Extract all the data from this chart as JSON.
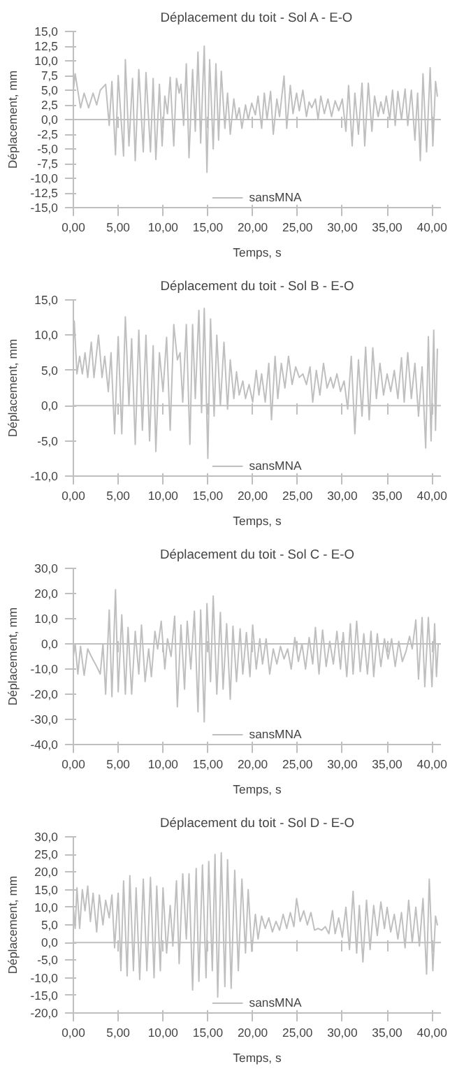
{
  "chart_data": [
    {
      "type": "line",
      "title": "Déplacement du toit - Sol A - E-O",
      "xlabel": "Temps, s",
      "ylabel": "Déplacement, mm",
      "ref_lines": [
        {
          "axis": "y",
          "value": 0,
          "color": "#bfbfbf"
        }
      ],
      "grid": false,
      "legend": "bottom",
      "marker": "none",
      "line_style": "solid",
      "xlim": [
        0,
        41
      ],
      "ylim": [
        -15,
        15
      ],
      "xticks": [
        {
          "value": 0,
          "label": "0,00"
        },
        {
          "value": 5,
          "label": "5,00"
        },
        {
          "value": 10,
          "label": "10,00"
        },
        {
          "value": 15,
          "label": "15,00"
        },
        {
          "value": 20,
          "label": "20,00"
        },
        {
          "value": 25,
          "label": "25,00"
        },
        {
          "value": 30,
          "label": "30,00"
        },
        {
          "value": 35,
          "label": "35,00"
        },
        {
          "value": 40,
          "label": "40,00"
        }
      ],
      "yticks": [
        {
          "value": -15,
          "label": "-15,0"
        },
        {
          "value": -12.5,
          "label": "-12,5"
        },
        {
          "value": -10,
          "label": "-10,0"
        },
        {
          "value": -7.5,
          "label": "-7,5"
        },
        {
          "value": -5,
          "label": "-5,0"
        },
        {
          "value": -2.5,
          "label": "-2,5"
        },
        {
          "value": 0,
          "label": "0,0"
        },
        {
          "value": 2.5,
          "label": "2,5"
        },
        {
          "value": 5,
          "label": "5,0"
        },
        {
          "value": 7.5,
          "label": "7,5"
        },
        {
          "value": 10,
          "label": "10,0"
        },
        {
          "value": 12.5,
          "label": "12,5"
        },
        {
          "value": 15,
          "label": "15,0"
        }
      ],
      "x": [
        0,
        0.2,
        0.8,
        1.2,
        1.7,
        2.2,
        2.6,
        3.0,
        3.6,
        4.0,
        4.3,
        4.7,
        5.0,
        5.6,
        5.8,
        6.2,
        6.6,
        6.9,
        7.3,
        7.8,
        8.1,
        8.6,
        8.9,
        9.2,
        9.6,
        9.9,
        10.2,
        10.5,
        10.8,
        11.2,
        11.5,
        11.8,
        12.0,
        12.3,
        12.6,
        12.9,
        13.3,
        13.6,
        13.9,
        14.2,
        14.6,
        14.9,
        15.2,
        15.6,
        15.9,
        16.2,
        16.5,
        16.9,
        17.2,
        17.5,
        17.9,
        18.2,
        18.5,
        18.8,
        19.2,
        19.5,
        19.9,
        20.3,
        20.6,
        21.0,
        21.3,
        21.6,
        22.0,
        22.3,
        22.7,
        23.0,
        23.5,
        23.8,
        24.2,
        24.5,
        24.9,
        25.2,
        25.6,
        26.0,
        26.3,
        26.6,
        27.0,
        27.3,
        27.6,
        28.0,
        28.4,
        28.8,
        29.2,
        29.6,
        30.0,
        30.4,
        30.7,
        31.1,
        31.4,
        31.8,
        32.2,
        32.5,
        32.9,
        33.3,
        33.6,
        34.0,
        34.3,
        34.6,
        34.9,
        35.3,
        35.6,
        35.9,
        36.2,
        36.6,
        37.0,
        37.3,
        37.7,
        38.1,
        38.4,
        38.7,
        39.0,
        39.4,
        39.8,
        40.1,
        40.4,
        40.6
      ],
      "series": [
        {
          "name": "sansMNA",
          "color": "#bfbfbf",
          "values": [
            5,
            7.8,
            2,
            4.5,
            2,
            4.5,
            2.5,
            5,
            6,
            -1,
            6.5,
            -6,
            7.5,
            -6.2,
            10.2,
            -4.5,
            7,
            -7,
            8.5,
            -5.5,
            8,
            -5.5,
            7,
            -6.8,
            6,
            -4.5,
            4,
            1,
            7.2,
            -4.5,
            7,
            4.5,
            6,
            -1,
            9.5,
            -6.5,
            8.5,
            -2,
            11.5,
            -4,
            12.5,
            -9,
            10.2,
            -5,
            9.5,
            -3.5,
            8.2,
            -1.5,
            4.5,
            -2.5,
            3.5,
            0,
            2,
            -1.5,
            2.5,
            0,
            2.8,
            0.8,
            4,
            -1.5,
            4.5,
            0,
            4.8,
            -2.5,
            3.5,
            0.5,
            7.4,
            -1.5,
            5.8,
            1,
            4.5,
            1.5,
            5,
            0.5,
            3,
            2,
            3.5,
            0,
            4,
            1,
            3.5,
            0.5,
            3.2,
            1.5,
            3.5,
            -2,
            5.8,
            -4.5,
            4.5,
            -2.5,
            6.2,
            -4.5,
            6.2,
            -2,
            4,
            0.5,
            3,
            1,
            4,
            0,
            5,
            -1,
            4.8,
            0,
            5.2,
            -1,
            5,
            -3.5,
            4.5,
            -7,
            7.8,
            -5.5,
            8.8,
            -4.5,
            6.5,
            4
          ]
        }
      ]
    },
    {
      "type": "line",
      "title": "Déplacement du toit - Sol B - E-O",
      "xlabel": "Temps, s",
      "ylabel": "Déplacement, mm",
      "ref_lines": [
        {
          "axis": "y",
          "value": 0,
          "color": "#bfbfbf"
        }
      ],
      "grid": false,
      "legend": "bottom",
      "marker": "none",
      "line_style": "solid",
      "xlim": [
        0,
        41
      ],
      "ylim": [
        -10,
        15
      ],
      "xticks": [
        {
          "value": 0,
          "label": "0,00"
        },
        {
          "value": 5,
          "label": "5,00"
        },
        {
          "value": 10,
          "label": "10,00"
        },
        {
          "value": 15,
          "label": "15,00"
        },
        {
          "value": 20,
          "label": "20,00"
        },
        {
          "value": 25,
          "label": "25,00"
        },
        {
          "value": 30,
          "label": "30,00"
        },
        {
          "value": 35,
          "label": "35,00"
        },
        {
          "value": 40,
          "label": "40,00"
        }
      ],
      "yticks": [
        {
          "value": -10,
          "label": "-10,0"
        },
        {
          "value": -5,
          "label": "-5,0"
        },
        {
          "value": 0,
          "label": "0,0"
        },
        {
          "value": 5,
          "label": "5,0"
        },
        {
          "value": 10,
          "label": "10,0"
        },
        {
          "value": 15,
          "label": "15,0"
        }
      ],
      "x": [
        0,
        0.1,
        0.4,
        0.7,
        1.0,
        1.3,
        1.6,
        2.0,
        2.3,
        2.8,
        3.2,
        3.5,
        3.9,
        4.2,
        4.6,
        5.0,
        5.4,
        5.8,
        6.2,
        6.5,
        6.9,
        7.3,
        7.7,
        8.1,
        8.5,
        8.9,
        9.2,
        9.6,
        10.0,
        10.4,
        10.8,
        11.2,
        11.6,
        11.9,
        12.2,
        12.6,
        13.0,
        13.3,
        13.6,
        14.0,
        14.3,
        14.6,
        15.0,
        15.3,
        15.7,
        16.0,
        16.4,
        16.8,
        17.2,
        17.5,
        17.9,
        18.2,
        18.5,
        18.9,
        19.2,
        19.6,
        20.0,
        20.4,
        20.7,
        21.0,
        21.4,
        21.8,
        22.1,
        22.5,
        22.8,
        23.2,
        23.6,
        24.0,
        24.4,
        24.8,
        25.2,
        25.6,
        26.0,
        26.4,
        26.7,
        27.1,
        27.5,
        27.9,
        28.3,
        28.7,
        29.0,
        29.4,
        29.8,
        30.2,
        30.6,
        31.0,
        31.4,
        31.8,
        32.2,
        32.6,
        33.0,
        33.4,
        33.8,
        34.2,
        34.6,
        35.0,
        35.4,
        35.8,
        36.2,
        36.6,
        36.9,
        37.3,
        37.7,
        38.1,
        38.5,
        38.9,
        39.3,
        39.6,
        39.9,
        40.2,
        40.4,
        40.6
      ],
      "series": [
        {
          "name": "sansMNA",
          "color": "#bfbfbf",
          "values": [
            9,
            12,
            4.5,
            7,
            4.5,
            7.5,
            4,
            9,
            4,
            10,
            4,
            7,
            2,
            7.5,
            -4,
            9.8,
            -4,
            12.6,
            0,
            9.5,
            -5.5,
            10.7,
            -3.5,
            10,
            -5,
            8.5,
            -6.5,
            7.5,
            2,
            9.7,
            -3.5,
            11.5,
            6.5,
            7.5,
            0.5,
            11.5,
            -5.5,
            11.5,
            1,
            13.5,
            -1,
            13.8,
            -7.5,
            12.3,
            -1.5,
            10,
            0,
            9,
            -0.5,
            6.5,
            1,
            4.8,
            1.5,
            3.5,
            1,
            3,
            0.5,
            5,
            1.5,
            4.5,
            0.5,
            6,
            -2,
            7,
            1,
            6,
            2.5,
            7,
            3,
            5.5,
            4,
            4.5,
            3,
            5.5,
            0.5,
            5,
            1.5,
            6,
            2.5,
            4,
            2.5,
            4.5,
            2,
            3.5,
            -0.5,
            7,
            -4,
            6.5,
            -1.5,
            8.3,
            -2,
            8.2,
            1,
            6,
            1.5,
            4.5,
            2,
            5,
            1,
            6.8,
            0.5,
            7.5,
            1,
            6,
            -1.5,
            5.5,
            -6,
            9.8,
            -5,
            10.7,
            -3.5,
            8
          ]
        }
      ]
    },
    {
      "type": "line",
      "title": "Déplacement du toit - Sol C - E-O",
      "xlabel": "Temps, s",
      "ylabel": "Déplacement, mm",
      "ref_lines": [
        {
          "axis": "y",
          "value": 0,
          "color": "#bfbfbf"
        }
      ],
      "grid": false,
      "legend": "bottom",
      "marker": "none",
      "line_style": "solid",
      "xlim": [
        0,
        41
      ],
      "ylim": [
        -40,
        30
      ],
      "xticks": [
        {
          "value": 0,
          "label": "0,00"
        },
        {
          "value": 5,
          "label": "5,00"
        },
        {
          "value": 10,
          "label": "10,00"
        },
        {
          "value": 15,
          "label": "15,00"
        },
        {
          "value": 20,
          "label": "20,00"
        },
        {
          "value": 25,
          "label": "25,00"
        },
        {
          "value": 30,
          "label": "30,00"
        },
        {
          "value": 35,
          "label": "35,00"
        },
        {
          "value": 40,
          "label": "40,00"
        }
      ],
      "yticks": [
        {
          "value": -40,
          "label": "-40,0"
        },
        {
          "value": -30,
          "label": "-30,0"
        },
        {
          "value": -20,
          "label": "-20,0"
        },
        {
          "value": -10,
          "label": "-10,0"
        },
        {
          "value": 0,
          "label": "0,0"
        },
        {
          "value": 10,
          "label": "10,0"
        },
        {
          "value": 20,
          "label": "20,0"
        },
        {
          "value": 30,
          "label": "30,0"
        }
      ],
      "x": [
        0,
        0.2,
        0.5,
        0.8,
        1.2,
        1.6,
        2.0,
        2.6,
        3.0,
        3.3,
        3.6,
        4.0,
        4.3,
        4.7,
        5.0,
        5.4,
        5.8,
        6.1,
        6.5,
        6.9,
        7.3,
        7.6,
        8.0,
        8.4,
        8.7,
        9.1,
        9.4,
        9.8,
        10.2,
        10.5,
        10.9,
        11.3,
        11.6,
        12.0,
        12.4,
        12.7,
        13.1,
        13.5,
        13.9,
        14.2,
        14.6,
        14.9,
        15.3,
        15.6,
        16.0,
        16.4,
        16.7,
        17.1,
        17.5,
        17.8,
        18.2,
        18.6,
        18.9,
        19.3,
        19.7,
        20.0,
        20.4,
        20.8,
        21.1,
        21.5,
        21.9,
        22.3,
        22.7,
        23.1,
        23.5,
        23.9,
        24.3,
        24.7,
        25.1,
        25.5,
        25.9,
        26.3,
        26.7,
        27.0,
        27.4,
        27.8,
        28.2,
        28.6,
        29.0,
        29.4,
        29.8,
        30.1,
        30.5,
        30.9,
        31.2,
        31.6,
        32.0,
        32.4,
        32.8,
        33.2,
        33.5,
        33.9,
        34.3,
        34.7,
        35.1,
        35.5,
        35.9,
        36.3,
        36.7,
        37.1,
        37.5,
        37.8,
        38.2,
        38.5,
        38.9,
        39.2,
        39.6,
        40.0,
        40.3,
        40.5,
        40.7
      ],
      "series": [
        {
          "name": "sansMNA",
          "color": "#bfbfbf",
          "values": [
            -5,
            0,
            -12,
            -1,
            -12.5,
            -2,
            -5,
            -9,
            -12,
            0,
            -20,
            13.5,
            -21,
            21.5,
            -19,
            11.5,
            -20,
            6.5,
            -20,
            5,
            -12,
            7.5,
            -15,
            -2,
            -13,
            5,
            -2,
            9,
            -10,
            2,
            -5,
            11,
            -25,
            7.5,
            -18,
            9,
            -10,
            13,
            -27,
            13.5,
            -31,
            16,
            -15,
            19,
            -20,
            12.5,
            -18,
            8,
            -22,
            7,
            -15,
            6,
            -12,
            4.5,
            -13,
            7.5,
            -10,
            2,
            -8,
            2,
            -12,
            -2,
            -8,
            -1,
            -6,
            -2,
            -10,
            2.5,
            -7,
            0,
            -10,
            2.5,
            -8,
            6.5,
            -12,
            5.5,
            -9,
            1,
            -8,
            5,
            -10,
            4.5,
            -13,
            8,
            -12,
            9,
            -11,
            4,
            -12,
            5,
            -13,
            4,
            -9,
            2,
            -6,
            2,
            -9,
            1,
            -7,
            -3,
            3,
            -2,
            9.5,
            -14,
            10.5,
            -17,
            10.5,
            -17,
            8,
            -13,
            0
          ]
        }
      ]
    },
    {
      "type": "line",
      "title": "Déplacement du toit - Sol D - E-O",
      "xlabel": "Temps, s",
      "ylabel": "Déplacement, mm",
      "ref_lines": [
        {
          "axis": "y",
          "value": 0,
          "color": "#bfbfbf"
        }
      ],
      "grid": false,
      "legend": "bottom",
      "marker": "none",
      "line_style": "solid",
      "xlim": [
        0,
        41
      ],
      "ylim": [
        -20,
        30
      ],
      "xticks": [
        {
          "value": 0,
          "label": "0,00"
        },
        {
          "value": 5,
          "label": "5,00"
        },
        {
          "value": 10,
          "label": "10,00"
        },
        {
          "value": 15,
          "label": "15,00"
        },
        {
          "value": 20,
          "label": "20,00"
        },
        {
          "value": 25,
          "label": "25,00"
        },
        {
          "value": 30,
          "label": "30,00"
        },
        {
          "value": 35,
          "label": "35,00"
        },
        {
          "value": 40,
          "label": "40,00"
        }
      ],
      "yticks": [
        {
          "value": -20,
          "label": "-20,0"
        },
        {
          "value": -15,
          "label": "-15,0"
        },
        {
          "value": -10,
          "label": "-10,0"
        },
        {
          "value": -5,
          "label": "-5,0"
        },
        {
          "value": 0,
          "label": "0,0"
        },
        {
          "value": 5,
          "label": "5,0"
        },
        {
          "value": 10,
          "label": "10,0"
        },
        {
          "value": 15,
          "label": "15,0"
        },
        {
          "value": 20,
          "label": "20,0"
        },
        {
          "value": 25,
          "label": "25,0"
        },
        {
          "value": 30,
          "label": "30,0"
        }
      ],
      "x": [
        0,
        0.2,
        0.4,
        0.7,
        1.0,
        1.3,
        1.6,
        1.9,
        2.2,
        2.6,
        2.9,
        3.3,
        3.6,
        4.0,
        4.3,
        4.6,
        5.0,
        5.3,
        5.6,
        6.0,
        6.3,
        6.7,
        7.0,
        7.4,
        7.8,
        8.2,
        8.6,
        9.0,
        9.3,
        9.7,
        10.0,
        10.4,
        10.8,
        11.1,
        11.5,
        11.8,
        12.2,
        12.6,
        12.9,
        13.3,
        13.7,
        14.0,
        14.4,
        14.8,
        15.1,
        15.5,
        15.8,
        16.1,
        16.5,
        16.9,
        17.2,
        17.6,
        18.0,
        18.4,
        18.8,
        19.2,
        19.5,
        19.9,
        20.3,
        20.6,
        21.0,
        21.4,
        21.8,
        22.2,
        22.6,
        23.0,
        23.4,
        23.8,
        24.2,
        24.6,
        24.9,
        25.3,
        25.7,
        26.1,
        26.5,
        26.9,
        27.3,
        27.7,
        28.1,
        28.5,
        28.9,
        29.2,
        29.6,
        30.0,
        30.4,
        30.8,
        31.2,
        31.6,
        31.9,
        32.3,
        32.7,
        33.1,
        33.5,
        33.9,
        34.3,
        34.7,
        35.0,
        35.4,
        35.8,
        36.2,
        36.6,
        37.0,
        37.4,
        37.8,
        38.2,
        38.6,
        39.0,
        39.4,
        39.7,
        40.1,
        40.4,
        40.6
      ],
      "series": [
        {
          "name": "sansMNA",
          "color": "#bfbfbf",
          "values": [
            10,
            4,
            15.5,
            4,
            15,
            9,
            16,
            6,
            14,
            3,
            13.5,
            5,
            12,
            7,
            13.5,
            -1.5,
            14,
            -8,
            17.5,
            -9.5,
            19,
            -8,
            15.5,
            -10.5,
            18,
            -8,
            18.5,
            -10,
            16,
            -8,
            15.5,
            -3,
            10.5,
            -1,
            17.5,
            -6,
            19.5,
            1,
            19.5,
            -13.5,
            21,
            -11,
            22,
            -10,
            23,
            -8,
            25,
            -15.5,
            25.5,
            -12.5,
            23.5,
            -13,
            20.5,
            -8,
            18,
            -3,
            15,
            -2.5,
            8,
            1,
            7.5,
            4,
            7,
            3,
            6,
            3.5,
            8,
            4,
            8.5,
            4.5,
            12.5,
            6,
            9,
            5,
            8.5,
            3.5,
            4,
            3.5,
            4.5,
            2.5,
            9,
            2.5,
            7,
            1.5,
            10,
            -2,
            14.5,
            -3,
            10.5,
            -5.5,
            12,
            -2,
            10.5,
            2,
            11.5,
            4,
            10,
            3,
            8,
            1,
            8.5,
            -1.5,
            12,
            0,
            10,
            -1,
            12.5,
            -9,
            18,
            -8,
            7.5,
            5
          ]
        }
      ]
    }
  ]
}
